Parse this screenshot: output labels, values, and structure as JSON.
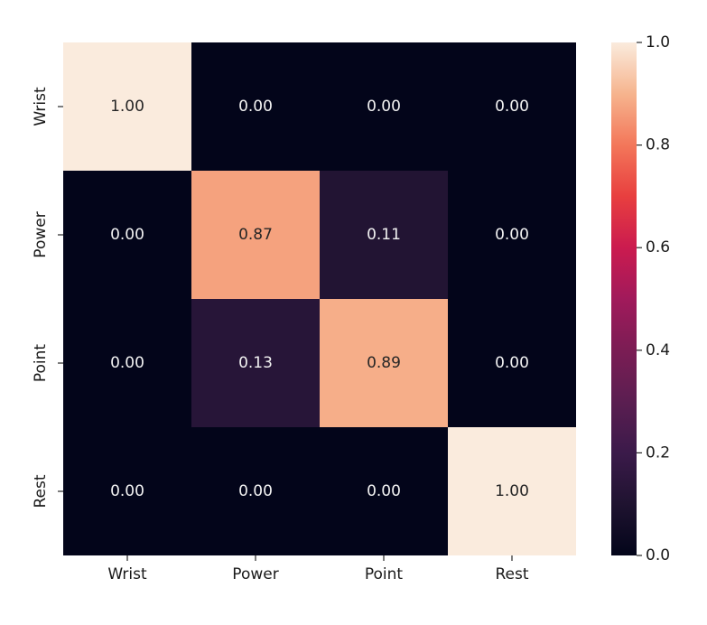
{
  "chart_data": {
    "type": "heatmap",
    "title": "",
    "xlabel": "",
    "ylabel": "",
    "x_categories": [
      "Wrist",
      "Power",
      "Point",
      "Rest"
    ],
    "y_categories": [
      "Wrist",
      "Power",
      "Point",
      "Rest"
    ],
    "values": [
      [
        1.0,
        0.0,
        0.0,
        0.0
      ],
      [
        0.0,
        0.87,
        0.11,
        0.0
      ],
      [
        0.0,
        0.13,
        0.89,
        0.0
      ],
      [
        0.0,
        0.0,
        0.0,
        1.0
      ]
    ],
    "cell_labels": [
      [
        "1.00",
        "0.00",
        "0.00",
        "0.00"
      ],
      [
        "0.00",
        "0.87",
        "0.11",
        "0.00"
      ],
      [
        "0.00",
        "0.13",
        "0.89",
        "0.00"
      ],
      [
        "0.00",
        "0.00",
        "0.00",
        "1.00"
      ]
    ],
    "colorbar": {
      "range": [
        0.0,
        1.0
      ],
      "ticks": [
        0.0,
        0.2,
        0.4,
        0.6,
        0.8,
        1.0
      ],
      "tick_labels": [
        "0.0",
        "0.2",
        "0.4",
        "0.6",
        "0.8",
        "1.0"
      ],
      "colormap": "rocket"
    }
  }
}
